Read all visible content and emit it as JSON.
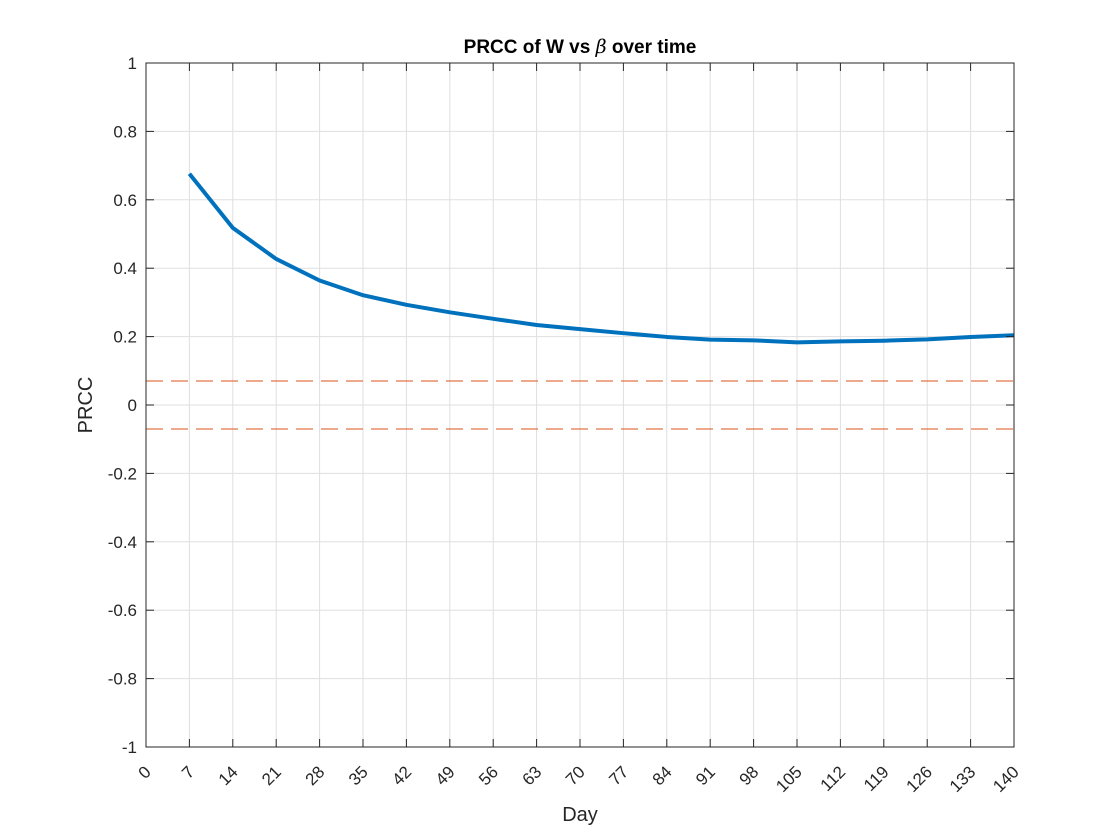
{
  "chart_data": {
    "type": "line",
    "title_prefix": "PRCC of W vs ",
    "title_symbol": "β",
    "title_suffix": " over time",
    "xlabel": "Day",
    "ylabel": "PRCC",
    "xlim": [
      0,
      140
    ],
    "ylim": [
      -1,
      1
    ],
    "grid": true,
    "x_ticks": [
      0,
      7,
      14,
      21,
      28,
      35,
      42,
      49,
      56,
      63,
      70,
      77,
      84,
      91,
      98,
      105,
      112,
      119,
      126,
      133,
      140
    ],
    "y_ticks": [
      1,
      0.8,
      0.6,
      0.4,
      0.2,
      0,
      -0.2,
      -0.4,
      -0.6,
      -0.8,
      -1
    ],
    "series": [
      {
        "color": "#0072BD",
        "style": "solid",
        "x": [
          7,
          14,
          21,
          28,
          35,
          42,
          49,
          56,
          63,
          70,
          77,
          84,
          91,
          98,
          105,
          112,
          119,
          126,
          133,
          140
        ],
        "values": [
          0.676,
          0.518,
          0.427,
          0.364,
          0.321,
          0.293,
          0.271,
          0.252,
          0.234,
          0.222,
          0.21,
          0.199,
          0.191,
          0.189,
          0.183,
          0.186,
          0.188,
          0.192,
          0.199,
          0.204
        ]
      }
    ],
    "reference_lines": [
      {
        "y": 0.07,
        "color": "#D95319",
        "style": "dashed"
      },
      {
        "y": -0.07,
        "color": "#D95319",
        "style": "dashed"
      }
    ]
  }
}
